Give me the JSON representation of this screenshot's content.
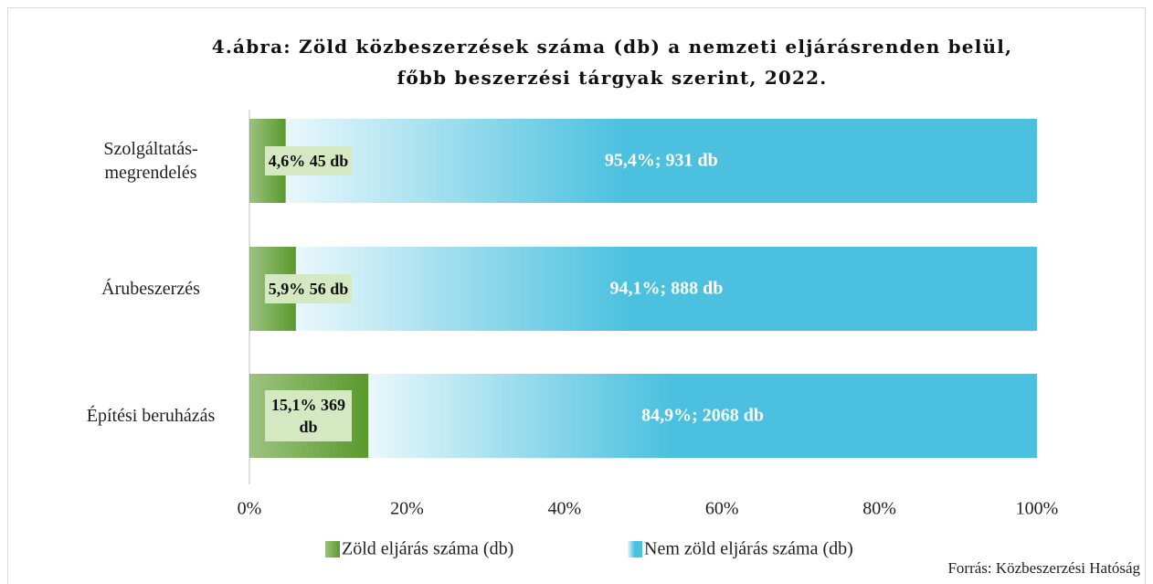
{
  "chart_data": {
    "type": "stacked_barh",
    "title": "4.ábra: Zöld közbeszerzések száma (db) a nemzeti eljárásrenden belül, főbb beszerzési tárgyak szerint, 2022.",
    "categories": [
      "Szolgáltatás-megrendelés",
      "Árubeszerzés",
      "Építési beruházás"
    ],
    "series": [
      {
        "name": "Zöld eljárás száma (db)",
        "color": "#5a9a2c",
        "values": [
          4.6,
          5.9,
          15.1
        ],
        "value_labels": [
          "4,6% 45 db",
          "5,9% 56 db",
          "15,1% 369 db"
        ]
      },
      {
        "name": "Nem zöld eljárás száma (db)",
        "color": "#4bc1df",
        "values": [
          95.4,
          94.1,
          84.9
        ],
        "value_labels": [
          "95,4%; 931 db",
          "94,1%; 888 db",
          "84,9%; 2068 db"
        ]
      }
    ],
    "xlim": [
      0,
      100
    ],
    "xticks": [
      {
        "value": 0,
        "label": "0%"
      },
      {
        "value": 20,
        "label": "20%"
      },
      {
        "value": 40,
        "label": "40%"
      },
      {
        "value": 60,
        "label": "60%"
      },
      {
        "value": 80,
        "label": "80%"
      },
      {
        "value": 100,
        "label": "100%"
      }
    ],
    "legend": "bottom",
    "source": "Forrás: Közbeszerzési Hatóság"
  }
}
